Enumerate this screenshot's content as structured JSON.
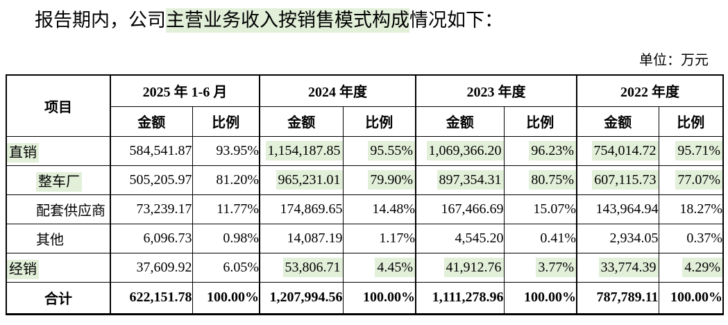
{
  "title": {
    "prefix": "报告期内，公司",
    "highlight": "主营业务收入按销售模式构成",
    "suffix": "情况如下："
  },
  "unit_label": "单位：万元",
  "colors": {
    "highlight_green": "#e2efd9",
    "border": "#000000",
    "text": "#000000",
    "background": "#ffffff"
  },
  "table": {
    "item_header": "项目",
    "amount_header": "金额",
    "ratio_header": "比例",
    "periods": [
      "2025 年 1-6 月",
      "2024 年度",
      "2023 年度",
      "2022 年度"
    ],
    "rows": [
      {
        "label": "直销",
        "indent": false,
        "label_highlight": true,
        "total": false,
        "cells": [
          {
            "v": "584,541.87",
            "hl": false
          },
          {
            "v": "93.95%",
            "hl": false
          },
          {
            "v": "1,154,187.85",
            "hl": true
          },
          {
            "v": "95.55%",
            "hl": true
          },
          {
            "v": "1,069,366.20",
            "hl": true
          },
          {
            "v": "96.23%",
            "hl": true
          },
          {
            "v": "754,014.72",
            "hl": true
          },
          {
            "v": "95.71%",
            "hl": true
          }
        ]
      },
      {
        "label": "整车厂",
        "indent": true,
        "label_highlight": true,
        "total": false,
        "cells": [
          {
            "v": "505,205.97",
            "hl": false
          },
          {
            "v": "81.20%",
            "hl": false
          },
          {
            "v": "965,231.01",
            "hl": true
          },
          {
            "v": "79.90%",
            "hl": true
          },
          {
            "v": "897,354.31",
            "hl": true
          },
          {
            "v": "80.75%",
            "hl": true
          },
          {
            "v": "607,115.73",
            "hl": true
          },
          {
            "v": "77.07%",
            "hl": true
          }
        ]
      },
      {
        "label": "配套供应商",
        "indent": true,
        "label_highlight": false,
        "total": false,
        "cells": [
          {
            "v": "73,239.17",
            "hl": false
          },
          {
            "v": "11.77%",
            "hl": false
          },
          {
            "v": "174,869.65",
            "hl": false
          },
          {
            "v": "14.48%",
            "hl": false
          },
          {
            "v": "167,466.69",
            "hl": false
          },
          {
            "v": "15.07%",
            "hl": false
          },
          {
            "v": "143,964.94",
            "hl": false
          },
          {
            "v": "18.27%",
            "hl": false
          }
        ]
      },
      {
        "label": "其他",
        "indent": true,
        "label_highlight": false,
        "total": false,
        "cells": [
          {
            "v": "6,096.73",
            "hl": false
          },
          {
            "v": "0.98%",
            "hl": false
          },
          {
            "v": "14,087.19",
            "hl": false
          },
          {
            "v": "1.17%",
            "hl": false
          },
          {
            "v": "4,545.20",
            "hl": false
          },
          {
            "v": "0.41%",
            "hl": false
          },
          {
            "v": "2,934.05",
            "hl": false
          },
          {
            "v": "0.37%",
            "hl": false
          }
        ]
      },
      {
        "label": "经销",
        "indent": false,
        "label_highlight": true,
        "total": false,
        "cells": [
          {
            "v": "37,609.92",
            "hl": false
          },
          {
            "v": "6.05%",
            "hl": false
          },
          {
            "v": "53,806.71",
            "hl": true
          },
          {
            "v": "4.45%",
            "hl": true
          },
          {
            "v": "41,912.76",
            "hl": true
          },
          {
            "v": "3.77%",
            "hl": true
          },
          {
            "v": "33,774.39",
            "hl": true
          },
          {
            "v": "4.29%",
            "hl": true
          }
        ]
      },
      {
        "label": "合计",
        "indent": false,
        "label_highlight": false,
        "total": true,
        "cells": [
          {
            "v": "622,151.78",
            "hl": false
          },
          {
            "v": "100.00%",
            "hl": false
          },
          {
            "v": "1,207,994.56",
            "hl": false
          },
          {
            "v": "100.00%",
            "hl": false
          },
          {
            "v": "1,111,278.96",
            "hl": false
          },
          {
            "v": "100.00%",
            "hl": false
          },
          {
            "v": "787,789.11",
            "hl": false
          },
          {
            "v": "100.00%",
            "hl": false
          }
        ]
      }
    ]
  }
}
